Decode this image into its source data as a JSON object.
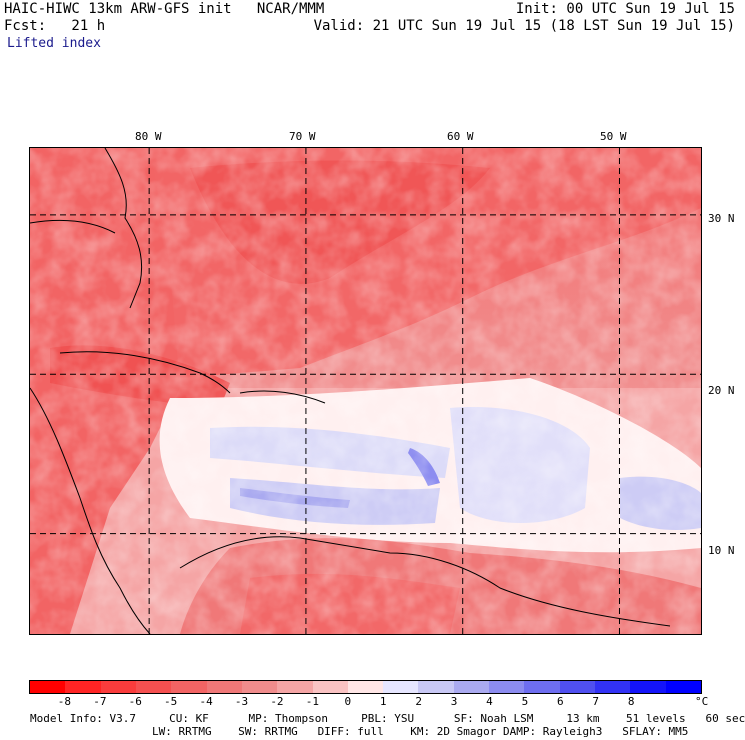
{
  "header": {
    "title_left": "HAIC-HIWC 13km ARW-GFS init   NCAR/MMM",
    "init": "Init: 00 UTC Sun 19 Jul 15",
    "fcst": "Fcst:   21 h",
    "valid": "Valid: 21 UTC Sun 19 Jul 15 (18 LST Sun 19 Jul 15)",
    "field": "Lifted index"
  },
  "map": {
    "lon_labels": [
      "80 W",
      "70 W",
      "60 W",
      "50 W"
    ],
    "lat_labels": [
      "30 N",
      "20 N",
      "10 N"
    ],
    "lon_values": [
      -80,
      -70,
      -60,
      -50
    ],
    "lat_values": [
      30,
      20,
      10
    ],
    "extent": {
      "lon_min": -87.6,
      "lon_max": -44.8,
      "lat_min": 3.7,
      "lat_max": 34.2
    },
    "field_range": [
      -9,
      9
    ]
  },
  "colorbar": {
    "labels": [
      "-8",
      "-7",
      "-6",
      "-5",
      "-4",
      "-3",
      "-2",
      "-1",
      "0",
      "1",
      "2",
      "3",
      "4",
      "5",
      "6",
      "7",
      "8"
    ],
    "unit": "°C",
    "colors": [
      "#ff0000",
      "#ff2424",
      "#fa3c3c",
      "#f55050",
      "#f26464",
      "#f07878",
      "#f08c8c",
      "#f5a5a5",
      "#fac3c3",
      "#ffe6e6",
      "#e6e6ff",
      "#c8c8f5",
      "#aaaaf0",
      "#8c8cf0",
      "#6e6ef0",
      "#5050f0",
      "#3232f5",
      "#1414fa",
      "#0000ff"
    ]
  },
  "model_info": {
    "line1": "Model Info: V3.7     CU: KF      MP: Thompson     PBL: YSU      SF: Noah LSM     13 km    51 levels   60 sec",
    "line2": "LW: RRTMG    SW: RRTMG   DIFF: full    KM: 2D Smagor DAMP: Rayleigh3   SFLAY: MM5"
  }
}
